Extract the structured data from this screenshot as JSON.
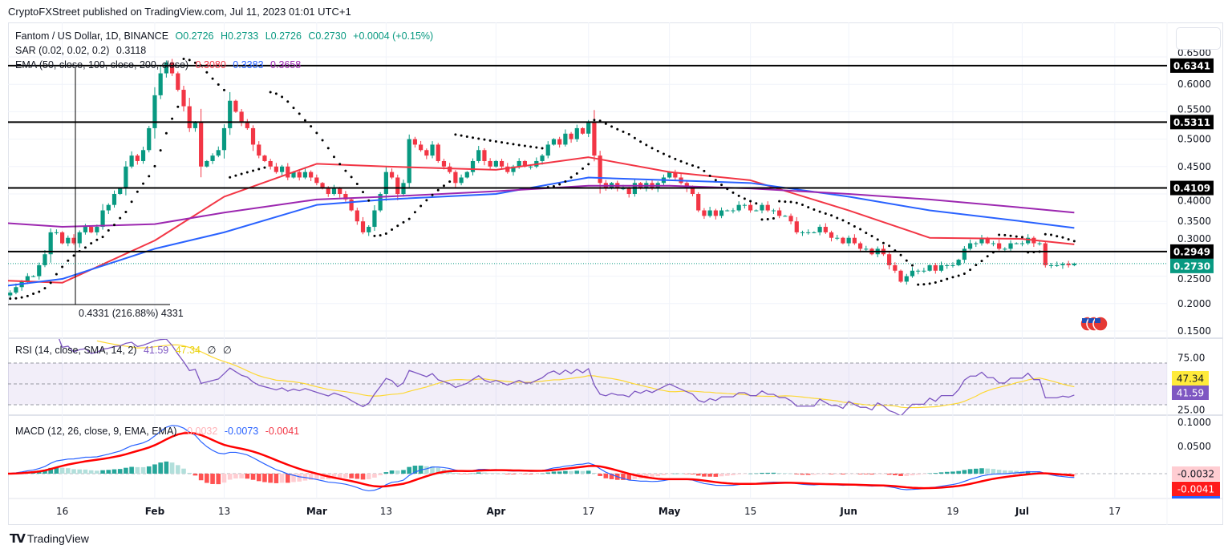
{
  "publisher_line": "CryptoFXStreet published on TradingView.com, Jul 11, 2023 01:01 UTC+1",
  "footer_brand": "TradingView",
  "legend": {
    "symbol": "Fantom / US Dollar, 1D, BINANCE",
    "open": "O0.2726",
    "high": "H0.2733",
    "low": "L0.2726",
    "close": "C0.2730",
    "change": "+0.0004 (+0.15%)",
    "sar_label": "SAR (0.02, 0.02, 0.2)",
    "sar_value": "0.3118",
    "ema_label": "EMA (50, close, 100, close, 200, close)",
    "ema50_value": "0.3080",
    "ema100_value": "0.3383",
    "ema200_value": "0.3658",
    "measure_text": "0.4331 (216.88%) 4331",
    "rsi_label": "RSI (14, close, SMA, 14, 2)",
    "rsi_value": "41.59",
    "rsi_sma_value": "47.34",
    "rsi_extra1": "∅",
    "rsi_extra2": "∅",
    "macd_label": "MACD (12, 26, close, 9, EMA, EMA)",
    "macd_hist_value": "-0.0032",
    "macd_value": "-0.0073",
    "macd_signal_value": "-0.0041"
  },
  "colors": {
    "up": "#089981",
    "down": "#f23645",
    "ema50": "#f23645",
    "ema100": "#2962ff",
    "ema200": "#9c27b0",
    "rsi": "#7e57c2",
    "rsi_sma": "#fdd835",
    "macd": "#2962ff",
    "signal": "#ff0000",
    "level": "#000000",
    "last_price": "#089981"
  },
  "chart_data": {
    "type": "candlestick",
    "title": "Fantom / US Dollar, 1D, BINANCE",
    "ylim": [
      0.15,
      0.65
    ],
    "price_ticks": [
      "0.6500",
      "0.6000",
      "0.5500",
      "0.5000",
      "0.4500",
      "0.4000",
      "0.3500",
      "0.3000",
      "0.2500",
      "0.2000",
      "0.1500"
    ],
    "time_ticks": [
      {
        "label": "16",
        "month": 1,
        "day": 16
      },
      {
        "label": "Feb",
        "month": 2,
        "day": 1
      },
      {
        "label": "13",
        "month": 2,
        "day": 13
      },
      {
        "label": "Mar",
        "month": 3,
        "day": 1
      },
      {
        "label": "13",
        "month": 3,
        "day": 13
      },
      {
        "label": "Apr",
        "month": 4,
        "day": 1
      },
      {
        "label": "17",
        "month": 4,
        "day": 17
      },
      {
        "label": "May",
        "month": 5,
        "day": 1
      },
      {
        "label": "15",
        "month": 5,
        "day": 15
      },
      {
        "label": "Jun",
        "month": 6,
        "day": 1
      },
      {
        "label": "19",
        "month": 6,
        "day": 19
      },
      {
        "label": "Jul",
        "month": 7,
        "day": 1
      },
      {
        "label": "17",
        "month": 7,
        "day": 17
      }
    ],
    "daily_closes": [
      {
        "month": 1,
        "first_day": 6,
        "closes": [
          0.215,
          0.22,
          0.23,
          0.24,
          0.25,
          0.25,
          0.27,
          0.29,
          0.33,
          0.33,
          0.31,
          0.32,
          0.31,
          0.33,
          0.34,
          0.33,
          0.34,
          0.37,
          0.38,
          0.4,
          0.41,
          0.45,
          0.47,
          0.46,
          0.48,
          0.52
        ]
      },
      {
        "month": 2,
        "first_day": 1,
        "closes": [
          0.58,
          0.62,
          0.64,
          0.62,
          0.59,
          0.56,
          0.52,
          0.53,
          0.45,
          0.46,
          0.47,
          0.48,
          0.52,
          0.57,
          0.55,
          0.53,
          0.52,
          0.49,
          0.47,
          0.46,
          0.45,
          0.44,
          0.45,
          0.43,
          0.44,
          0.43,
          0.44,
          0.43
        ]
      },
      {
        "month": 3,
        "first_day": 1,
        "closes": [
          0.42,
          0.41,
          0.4,
          0.41,
          0.4,
          0.39,
          0.37,
          0.35,
          0.33,
          0.34,
          0.37,
          0.4,
          0.44,
          0.43,
          0.4,
          0.42,
          0.5,
          0.49,
          0.48,
          0.47,
          0.49,
          0.46,
          0.45,
          0.44,
          0.42,
          0.43,
          0.44,
          0.46,
          0.48,
          0.46,
          0.45
        ]
      },
      {
        "month": 4,
        "first_day": 1,
        "closes": [
          0.46,
          0.45,
          0.44,
          0.45,
          0.46,
          0.45,
          0.45,
          0.46,
          0.47,
          0.49,
          0.5,
          0.49,
          0.51,
          0.5,
          0.52,
          0.51,
          0.53,
          0.47,
          0.42,
          0.41,
          0.42,
          0.41,
          0.41,
          0.4,
          0.42,
          0.41,
          0.42,
          0.41,
          0.42,
          0.43
        ]
      },
      {
        "month": 5,
        "first_day": 1,
        "closes": [
          0.44,
          0.43,
          0.42,
          0.41,
          0.4,
          0.37,
          0.36,
          0.37,
          0.36,
          0.37,
          0.37,
          0.37,
          0.38,
          0.38,
          0.37,
          0.37,
          0.38,
          0.37,
          0.37,
          0.36,
          0.36,
          0.35,
          0.33,
          0.33,
          0.33,
          0.33,
          0.34,
          0.33,
          0.32,
          0.32,
          0.31
        ]
      },
      {
        "month": 6,
        "first_day": 1,
        "closes": [
          0.32,
          0.31,
          0.3,
          0.3,
          0.29,
          0.3,
          0.29,
          0.27,
          0.26,
          0.24,
          0.25,
          0.26,
          0.26,
          0.26,
          0.27,
          0.26,
          0.27,
          0.27,
          0.27,
          0.28,
          0.3,
          0.31,
          0.31,
          0.32,
          0.31,
          0.31,
          0.3,
          0.3,
          0.31,
          0.31
        ]
      },
      {
        "month": 7,
        "first_day": 1,
        "closes": [
          0.31,
          0.32,
          0.31,
          0.31,
          0.27,
          0.27,
          0.27,
          0.2726,
          0.27,
          0.273
        ]
      }
    ],
    "ema_lines": [
      {
        "name": "EMA 50",
        "points": [
          [
            1,
            6,
            0.242
          ],
          [
            1,
            16,
            0.238
          ],
          [
            2,
            1,
            0.315
          ],
          [
            2,
            13,
            0.395
          ],
          [
            3,
            1,
            0.455
          ],
          [
            3,
            13,
            0.45
          ],
          [
            4,
            1,
            0.444
          ],
          [
            4,
            17,
            0.467
          ],
          [
            5,
            1,
            0.44
          ],
          [
            5,
            15,
            0.425
          ],
          [
            6,
            1,
            0.37
          ],
          [
            6,
            15,
            0.32
          ],
          [
            7,
            1,
            0.318
          ],
          [
            7,
            10,
            0.308
          ]
        ]
      },
      {
        "name": "EMA 100",
        "points": [
          [
            1,
            6,
            0.232
          ],
          [
            1,
            16,
            0.245
          ],
          [
            2,
            1,
            0.3
          ],
          [
            2,
            13,
            0.33
          ],
          [
            3,
            1,
            0.38
          ],
          [
            3,
            13,
            0.39
          ],
          [
            4,
            1,
            0.4
          ],
          [
            4,
            17,
            0.43
          ],
          [
            5,
            1,
            0.425
          ],
          [
            5,
            15,
            0.42
          ],
          [
            6,
            1,
            0.395
          ],
          [
            6,
            15,
            0.37
          ],
          [
            7,
            1,
            0.35
          ],
          [
            7,
            10,
            0.338
          ]
        ]
      },
      {
        "name": "EMA 200",
        "points": [
          [
            1,
            6,
            0.347
          ],
          [
            1,
            16,
            0.34
          ],
          [
            2,
            1,
            0.345
          ],
          [
            2,
            13,
            0.366
          ],
          [
            3,
            1,
            0.39
          ],
          [
            3,
            13,
            0.395
          ],
          [
            4,
            1,
            0.405
          ],
          [
            4,
            17,
            0.415
          ],
          [
            5,
            1,
            0.415
          ],
          [
            5,
            15,
            0.41
          ],
          [
            6,
            1,
            0.4
          ],
          [
            6,
            15,
            0.39
          ],
          [
            7,
            1,
            0.375
          ],
          [
            7,
            10,
            0.366
          ]
        ]
      }
    ],
    "horizontal_levels": [
      "0.6341",
      "0.5311",
      "0.4109",
      "0.2949"
    ],
    "last_price": "0.2730",
    "rsi": {
      "ticks": [
        "75.00",
        "25.00"
      ],
      "band": [
        30,
        70
      ],
      "last": "41.59",
      "sma_last": "47.34"
    },
    "macd": {
      "ticks": [
        "0.1000",
        "0.0500"
      ],
      "hist_last": "-0.0032",
      "signal_last": "-0.0041"
    }
  }
}
